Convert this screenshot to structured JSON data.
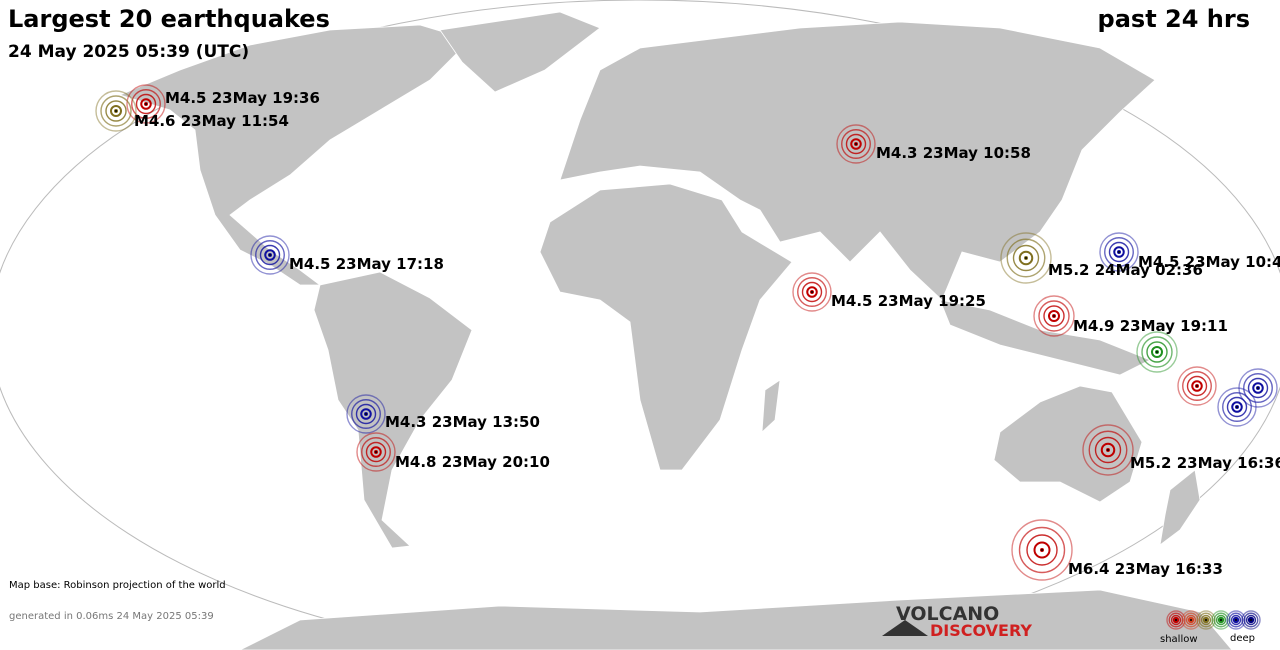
{
  "header": {
    "title": "Largest 20 earthquakes",
    "subtitle": "24 May 2025 05:39 (UTC)",
    "period": "past 24 hrs"
  },
  "quakes": [
    {
      "label": "M4.5 23May 19:36"
    },
    {
      "label": "M4.6 23May 11:54"
    },
    {
      "label": "M4.3 23May 10:58"
    },
    {
      "label": "M4.5 23May 17:18"
    },
    {
      "label": "M5.2 24May 02:36"
    },
    {
      "label": "M4.5 23May 10:4"
    },
    {
      "label": "M4.5 23May 19:25"
    },
    {
      "label": "M4.9 23May 19:11"
    },
    {
      "label": "M4.3 23May 13:50"
    },
    {
      "label": "M4.8 23May 20:10"
    },
    {
      "label": "M5.2 23May 16:36"
    },
    {
      "label": "M6.4 23May 16:33"
    }
  ],
  "footer": {
    "map_base": "Map base: Robinson projection of the world",
    "generated": "generated in 0.06ms 24 May 2025 05:39"
  },
  "logo": {
    "line1": "VOLCANO",
    "line2": "DISCOVERY"
  },
  "legend": {
    "shallow": "shallow",
    "deep": "deep"
  }
}
